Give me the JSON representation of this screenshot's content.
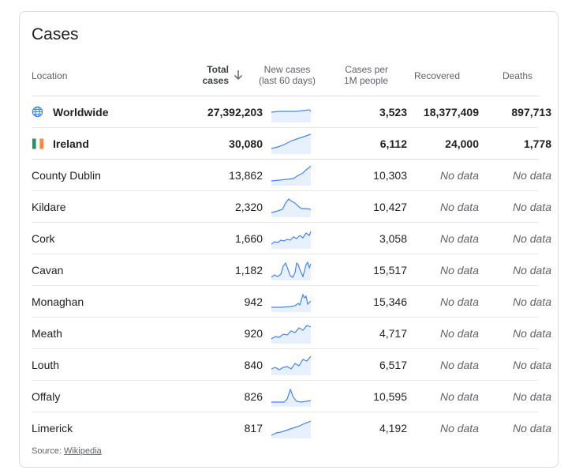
{
  "card": {
    "title": "Cases",
    "headers": {
      "location": "Location",
      "total_cases_line1": "Total",
      "total_cases_line2": "cases",
      "new_cases_line1": "New cases",
      "new_cases_line2": "(last 60 days)",
      "per_million_line1": "Cases per",
      "per_million_line2": "1M people",
      "recovered": "Recovered",
      "deaths": "Deaths"
    },
    "rows": [
      {
        "location": "Worldwide",
        "total": "27,392,203",
        "per_million": "3,523",
        "recovered": "18,377,409",
        "deaths": "897,713"
      },
      {
        "location": "Ireland",
        "total": "30,080",
        "per_million": "6,112",
        "recovered": "24,000",
        "deaths": "1,778"
      },
      {
        "location": "County Dublin",
        "total": "13,862",
        "per_million": "10,303",
        "recovered": "No data",
        "deaths": "No data"
      },
      {
        "location": "Kildare",
        "total": "2,320",
        "per_million": "10,427",
        "recovered": "No data",
        "deaths": "No data"
      },
      {
        "location": "Cork",
        "total": "1,660",
        "per_million": "3,058",
        "recovered": "No data",
        "deaths": "No data"
      },
      {
        "location": "Cavan",
        "total": "1,182",
        "per_million": "15,517",
        "recovered": "No data",
        "deaths": "No data"
      },
      {
        "location": "Monaghan",
        "total": "942",
        "per_million": "15,346",
        "recovered": "No data",
        "deaths": "No data"
      },
      {
        "location": "Meath",
        "total": "920",
        "per_million": "4,717",
        "recovered": "No data",
        "deaths": "No data"
      },
      {
        "location": "Louth",
        "total": "840",
        "per_million": "6,517",
        "recovered": "No data",
        "deaths": "No data"
      },
      {
        "location": "Offaly",
        "total": "826",
        "per_million": "10,595",
        "recovered": "No data",
        "deaths": "No data"
      },
      {
        "location": "Limerick",
        "total": "817",
        "per_million": "4,192",
        "recovered": "No data",
        "deaths": "No data"
      }
    ],
    "source_prefix": "Source: ",
    "source_link": "Wikipedia"
  },
  "icons": {
    "sort": "arrow-down-icon",
    "worldwide": "globe-icon",
    "ireland": "ireland-flag-icon"
  },
  "colors": {
    "spark_line": "#4285f4",
    "spark_fill": "#e8f0fe",
    "flag_green": "#169b62",
    "flag_white": "#ffffff",
    "flag_orange": "#ff883e"
  }
}
